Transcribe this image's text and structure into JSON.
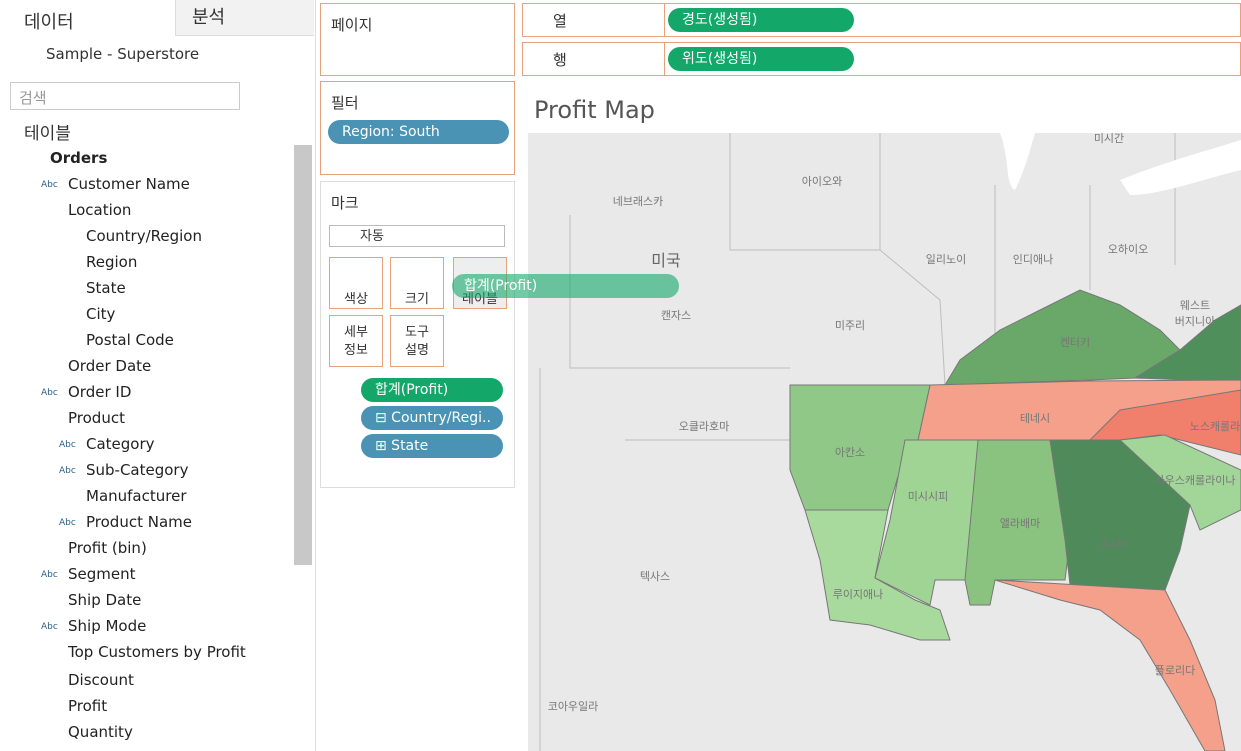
{
  "data_pane": {
    "tabs": [
      "데이터",
      "분석"
    ],
    "datasource": "Sample - Superstore",
    "search_placeholder": "검색",
    "section": "테이블",
    "abc": "Abc",
    "fields": [
      "Orders",
      "Customer Name",
      "Location",
      "Country/Region",
      "Region",
      "State",
      "City",
      "Postal Code",
      "Order Date",
      "Order ID",
      "Product",
      "Category",
      "Sub-Category",
      "Manufacturer",
      "Product Name",
      "Profit (bin)",
      "Segment",
      "Ship Date",
      "Ship Mode",
      "Top Customers by Profit",
      "Discount",
      "Profit",
      "Quantity"
    ]
  },
  "shelves": {
    "pages": "페이지",
    "columns": {
      "label": "열",
      "pill": "경도(생성됨)"
    },
    "rows": {
      "label": "행",
      "pill": "위도(생성됨)"
    },
    "filters": {
      "label": "필터",
      "pill": "Region: South"
    },
    "marks": {
      "label": "마크",
      "type": "자동",
      "buttons": [
        "색상",
        "크기",
        "레이블",
        "세부\n정보",
        "도구\n설명"
      ],
      "pills": [
        "합계(Profit)",
        "⊟ Country/Regi..",
        "⊞ State"
      ]
    },
    "drag_ghost": "합계(Profit)"
  },
  "view": {
    "title": "Profit Map",
    "map_labels": [
      "미시간",
      "아이오와",
      "네브래스카",
      "미국",
      "일리노이",
      "인디애나",
      "오하이오",
      "캔자스",
      "미주리",
      "켄터키",
      "웨스트\n버지니아",
      "오클라호마",
      "테네시",
      "아칸소",
      "미시시피",
      "앨라배마",
      "조지아",
      "사우스캐롤라이나",
      "노스캐롤라",
      "텍사스",
      "루이지애나",
      "플로리다",
      "코아우일라"
    ]
  }
}
